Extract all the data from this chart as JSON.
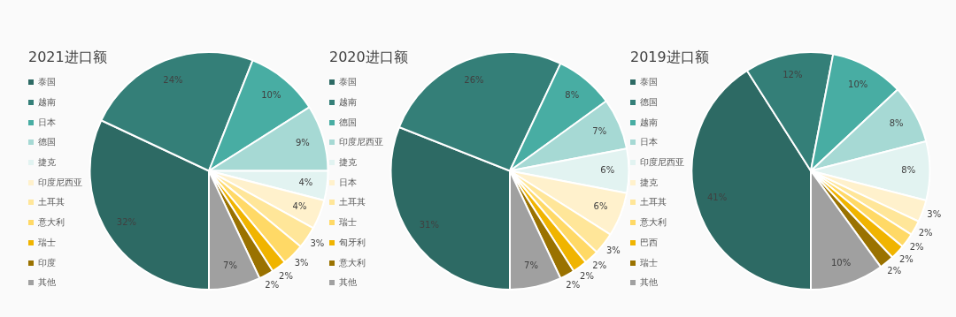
{
  "chart_data": [
    {
      "type": "pie",
      "title": "2021进口额",
      "legend": "left",
      "categories": [
        "泰国",
        "越南",
        "日本",
        "德国",
        "捷克",
        "印度尼西亚",
        "土耳其",
        "意大利",
        "瑞士",
        "印度",
        "其他"
      ],
      "values": [
        32,
        24,
        10,
        9,
        4,
        4,
        3,
        3,
        2,
        2,
        7
      ],
      "value_labels": [
        "32%",
        "24%",
        "10%",
        "9%",
        "4%",
        "4%",
        "3%",
        "3%",
        "2%",
        "2%",
        "7%"
      ],
      "colors": [
        "#2d6a64",
        "#347f78",
        "#48ada3",
        "#a6d9d4",
        "#e2f3f1",
        "#fff1cc",
        "#ffe699",
        "#ffd966",
        "#f0b400",
        "#9a7200",
        "#a0a0a0"
      ]
    },
    {
      "type": "pie",
      "title": "2020进口额",
      "legend": "left",
      "categories": [
        "泰国",
        "越南",
        "德国",
        "印度尼西亚",
        "捷克",
        "日本",
        "土耳其",
        "瑞士",
        "匈牙利",
        "意大利",
        "其他"
      ],
      "values": [
        31,
        26,
        8,
        7,
        6,
        6,
        3,
        2,
        2,
        2,
        7
      ],
      "value_labels": [
        "31%",
        "26%",
        "8%",
        "7%",
        "6%",
        "6%",
        "3%",
        "2%",
        "2%",
        "2%",
        "7%"
      ],
      "colors": [
        "#2d6a64",
        "#347f78",
        "#48ada3",
        "#a6d9d4",
        "#e2f3f1",
        "#fff1cc",
        "#ffe699",
        "#ffd966",
        "#f0b400",
        "#9a7200",
        "#a0a0a0"
      ]
    },
    {
      "type": "pie",
      "title": "2019进口额",
      "legend": "left",
      "categories": [
        "泰国",
        "德国",
        "越南",
        "日本",
        "印度尼西亚",
        "捷克",
        "土耳其",
        "意大利",
        "巴西",
        "瑞士",
        "其他"
      ],
      "values": [
        41,
        12,
        10,
        8,
        8,
        3,
        2,
        2,
        2,
        2,
        10
      ],
      "value_labels": [
        "41%",
        "12%",
        "10%",
        "8%",
        "8%",
        "3%",
        "2%",
        "2%",
        "2%",
        "2%",
        "10%"
      ],
      "colors": [
        "#2d6a64",
        "#347f78",
        "#48ada3",
        "#a6d9d4",
        "#e2f3f1",
        "#fff1cc",
        "#ffe699",
        "#ffd966",
        "#f0b400",
        "#9a7200",
        "#a0a0a0"
      ]
    }
  ]
}
